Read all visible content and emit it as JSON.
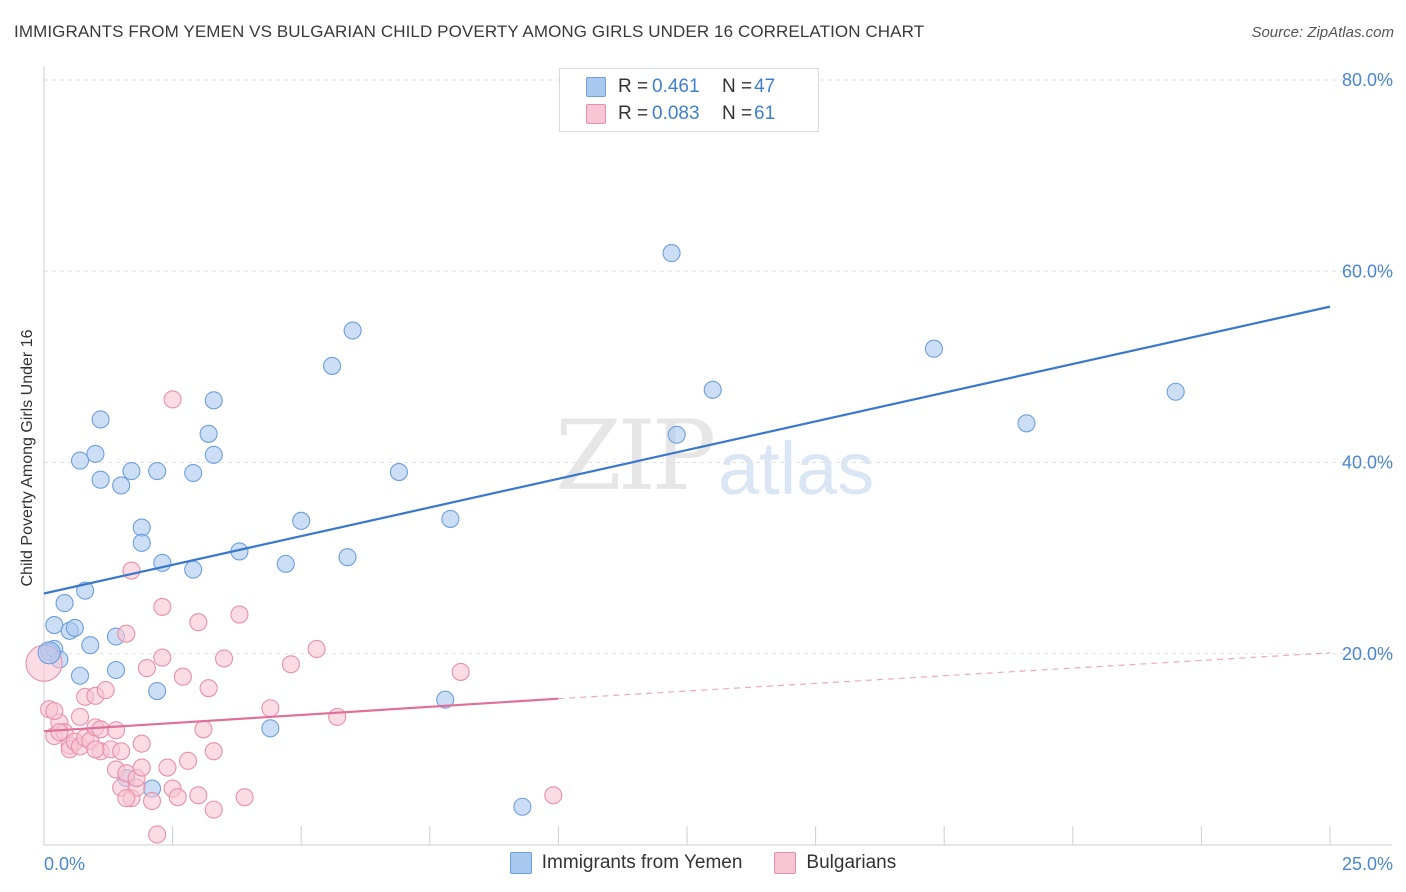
{
  "title": "IMMIGRANTS FROM YEMEN VS BULGARIAN CHILD POVERTY AMONG GIRLS UNDER 16 CORRELATION CHART",
  "source": "Source: ZipAtlas.com",
  "watermark": {
    "zip": "ZIP",
    "atlas": "atlas"
  },
  "legend": {
    "rows": [
      {
        "r_label": "R =",
        "r_value": "0.461",
        "n_label": "N =",
        "n_value": "47",
        "color": "#a9c8f0",
        "border": "#6f9fdc"
      },
      {
        "r_label": "R =",
        "r_value": "0.083",
        "n_label": "N =",
        "n_value": "61",
        "color": "#f8c5d4",
        "border": "#e890aa"
      }
    ]
  },
  "bottom_legend": [
    {
      "label": "Immigrants from Yemen",
      "color": "#a9c8f0",
      "border": "#6f9fdc"
    },
    {
      "label": "Bulgarians",
      "color": "#f8c5d4",
      "border": "#e890aa"
    }
  ],
  "chart_data": {
    "type": "scatter",
    "title": "IMMIGRANTS FROM YEMEN VS BULGARIAN CHILD POVERTY AMONG GIRLS UNDER 16 CORRELATION CHART",
    "xlabel": "",
    "ylabel": "Child Poverty Among Girls Under 16",
    "xlim": [
      0,
      25
    ],
    "ylim": [
      0,
      80
    ],
    "x_ticks": [
      "0.0%",
      "25.0%"
    ],
    "y_ticks": [
      "20.0%",
      "40.0%",
      "60.0%",
      "80.0%"
    ],
    "grid": true,
    "legend_position": "top-center",
    "series": [
      {
        "name": "Immigrants from Yemen",
        "color": "#6f9fdc",
        "fill": "#a9c8f0",
        "trend": {
          "x": [
            0,
            25
          ],
          "y": [
            26.3,
            56.3
          ],
          "style": "solid",
          "color": "#3a78cc"
        },
        "points": [
          [
            0.1,
            20.2
          ],
          [
            0.2,
            20.5
          ],
          [
            0.3,
            19.4
          ],
          [
            0.2,
            23.0
          ],
          [
            0.4,
            25.3
          ],
          [
            0.5,
            22.4
          ],
          [
            0.6,
            22.7
          ],
          [
            0.7,
            17.7
          ],
          [
            0.8,
            26.6
          ],
          [
            0.9,
            20.9
          ],
          [
            1.0,
            40.9
          ],
          [
            1.1,
            44.5
          ],
          [
            1.1,
            38.2
          ],
          [
            0.7,
            40.2
          ],
          [
            1.4,
            21.8
          ],
          [
            1.4,
            18.3
          ],
          [
            1.5,
            37.6
          ],
          [
            1.7,
            39.1
          ],
          [
            1.9,
            33.2
          ],
          [
            1.9,
            31.6
          ],
          [
            2.2,
            39.1
          ],
          [
            2.2,
            16.1
          ],
          [
            2.3,
            29.5
          ],
          [
            2.9,
            28.8
          ],
          [
            2.9,
            38.9
          ],
          [
            3.2,
            43.0
          ],
          [
            3.3,
            40.8
          ],
          [
            3.3,
            46.5
          ],
          [
            3.8,
            30.7
          ],
          [
            4.7,
            29.4
          ],
          [
            5.0,
            33.9
          ],
          [
            5.6,
            50.1
          ],
          [
            5.9,
            30.1
          ],
          [
            6.0,
            53.8
          ],
          [
            6.9,
            39.0
          ],
          [
            7.8,
            15.2
          ],
          [
            7.9,
            34.1
          ],
          [
            9.3,
            4.0
          ],
          [
            12.2,
            61.9
          ],
          [
            12.3,
            42.9
          ],
          [
            13.0,
            47.6
          ],
          [
            17.3,
            51.9
          ],
          [
            19.1,
            44.1
          ],
          [
            22.0,
            47.4
          ],
          [
            4.4,
            12.2
          ],
          [
            2.1,
            5.9
          ],
          [
            1.6,
            7.0
          ]
        ]
      },
      {
        "name": "Bulgarians",
        "color": "#e890aa",
        "fill": "#f8c5d4",
        "trend": {
          "x": [
            0,
            10
          ],
          "y": [
            11.9,
            15.3
          ],
          "style": "solid",
          "color": "#e0709a",
          "extend_to": [
            25,
            20.1
          ],
          "extend_style": "dashed"
        },
        "points": [
          [
            0.0,
            19.0
          ],
          [
            0.1,
            14.2
          ],
          [
            0.2,
            11.4
          ],
          [
            0.3,
            12.8
          ],
          [
            0.4,
            11.8
          ],
          [
            0.5,
            10.4
          ],
          [
            0.5,
            10.0
          ],
          [
            0.6,
            10.8
          ],
          [
            0.7,
            10.3
          ],
          [
            0.7,
            13.4
          ],
          [
            0.8,
            11.2
          ],
          [
            0.8,
            15.5
          ],
          [
            0.9,
            10.9
          ],
          [
            1.0,
            15.6
          ],
          [
            1.0,
            12.3
          ],
          [
            1.1,
            12.1
          ],
          [
            1.1,
            9.8
          ],
          [
            1.2,
            16.2
          ],
          [
            1.3,
            10.0
          ],
          [
            1.4,
            7.9
          ],
          [
            1.4,
            12.0
          ],
          [
            1.5,
            6.0
          ],
          [
            1.5,
            9.8
          ],
          [
            1.6,
            7.5
          ],
          [
            1.6,
            22.1
          ],
          [
            1.7,
            4.9
          ],
          [
            1.7,
            28.7
          ],
          [
            1.8,
            6.0
          ],
          [
            1.8,
            7.0
          ],
          [
            1.9,
            8.1
          ],
          [
            1.9,
            10.6
          ],
          [
            2.0,
            18.5
          ],
          [
            2.1,
            4.6
          ],
          [
            2.2,
            1.1
          ],
          [
            2.3,
            24.9
          ],
          [
            2.3,
            19.6
          ],
          [
            2.4,
            8.1
          ],
          [
            2.5,
            5.9
          ],
          [
            2.5,
            46.6
          ],
          [
            2.6,
            5.0
          ],
          [
            2.7,
            17.6
          ],
          [
            2.8,
            8.8
          ],
          [
            3.0,
            23.3
          ],
          [
            3.0,
            5.2
          ],
          [
            3.1,
            12.1
          ],
          [
            3.2,
            16.4
          ],
          [
            3.3,
            9.8
          ],
          [
            3.3,
            3.7
          ],
          [
            3.5,
            19.5
          ],
          [
            3.8,
            24.1
          ],
          [
            3.9,
            5.0
          ],
          [
            4.4,
            14.3
          ],
          [
            4.8,
            18.9
          ],
          [
            5.3,
            20.5
          ],
          [
            5.7,
            13.4
          ],
          [
            8.1,
            18.1
          ],
          [
            9.9,
            5.2
          ],
          [
            1.0,
            10.0
          ],
          [
            0.3,
            11.8
          ],
          [
            0.2,
            14.0
          ],
          [
            1.6,
            4.9
          ]
        ]
      }
    ]
  }
}
